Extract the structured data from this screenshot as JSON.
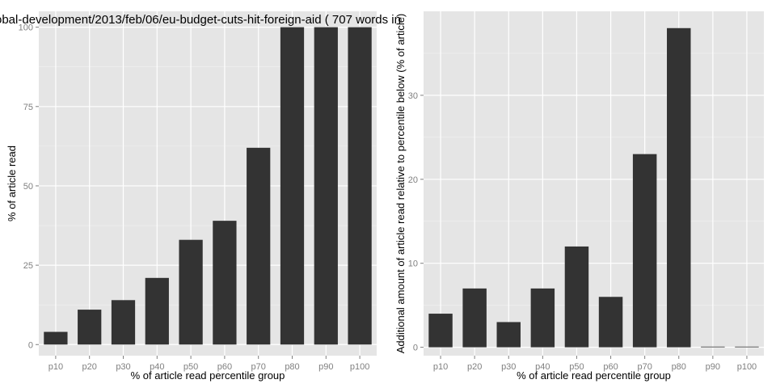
{
  "page": {
    "background": "#ffffff",
    "panel_background": "#e5e5e5",
    "grid_color": "#ffffff",
    "bar_color": "#333333"
  },
  "chart_data": [
    {
      "type": "bar",
      "title": "obal-development/2013/feb/06/eu-budget-cuts-hit-foreign-aid ( 707 words in",
      "xlabel": "% of article read percentile group",
      "ylabel": "% of article read",
      "categories": [
        "p10",
        "p20",
        "p30",
        "p40",
        "p50",
        "p60",
        "p70",
        "p80",
        "p90",
        "p100"
      ],
      "values": [
        4,
        11,
        14,
        21,
        33,
        39,
        62,
        100,
        100,
        100
      ],
      "ylim": [
        -3.5,
        105
      ],
      "yticks": [
        0,
        25,
        50,
        75,
        100
      ],
      "grid": true
    },
    {
      "type": "bar",
      "title": "",
      "xlabel": "% of article read percentile group",
      "ylabel": "Additional amount of article read relative to percentile below (% of article)",
      "categories": [
        "p10",
        "p20",
        "p30",
        "p40",
        "p50",
        "p60",
        "p70",
        "p80",
        "p90",
        "p100"
      ],
      "values": [
        4,
        7,
        3,
        7,
        12,
        6,
        23,
        38,
        0,
        0
      ],
      "ylim": [
        -1,
        40
      ],
      "yticks": [
        0,
        10,
        20,
        30
      ],
      "grid": true
    }
  ]
}
